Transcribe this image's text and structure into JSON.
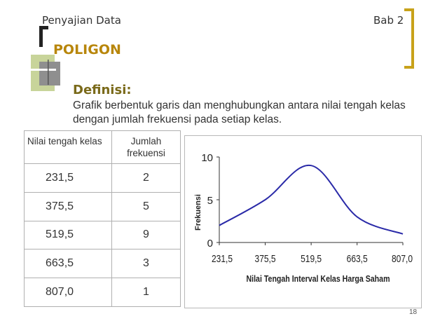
{
  "header": {
    "left": "Penyajian Data",
    "right": "Bab 2"
  },
  "title": "POLIGON",
  "definition": {
    "heading": "Definisi:",
    "text": "Grafik berbentuk garis dan menghubungkan antara nilai tengah kelas dengan jumlah frekuensi pada setiap kelas."
  },
  "table": {
    "headers": [
      "Nilai tengah kelas",
      "Jumlah frekuensi"
    ],
    "rows": [
      [
        "231,5",
        "2"
      ],
      [
        "375,5",
        "5"
      ],
      [
        "519,5",
        "9"
      ],
      [
        "663,5",
        "3"
      ],
      [
        "807,0",
        "1"
      ]
    ]
  },
  "chart_data": {
    "type": "line",
    "x": [
      231.5,
      375.5,
      519.5,
      663.5,
      807.0
    ],
    "y": [
      2,
      5,
      9,
      3,
      1
    ],
    "x_ticks": [
      "231,5",
      "375,5",
      "519,5",
      "663,5",
      "807,0"
    ],
    "y_ticks": [
      "0",
      "5",
      "10"
    ],
    "xlabel": "Nilai Tengah Interval Kelas Harga Saham",
    "ylabel": "Frekuensi",
    "xlim": [
      231.5,
      807.0
    ],
    "ylim": [
      0,
      10
    ],
    "line_color": "#2a2aa8",
    "smooth": true,
    "grid": false
  },
  "page_number": "18",
  "colors": {
    "accent": "#b8860b",
    "deco_gray": "#8f8f8f",
    "deco_green": "#c8d49a"
  }
}
